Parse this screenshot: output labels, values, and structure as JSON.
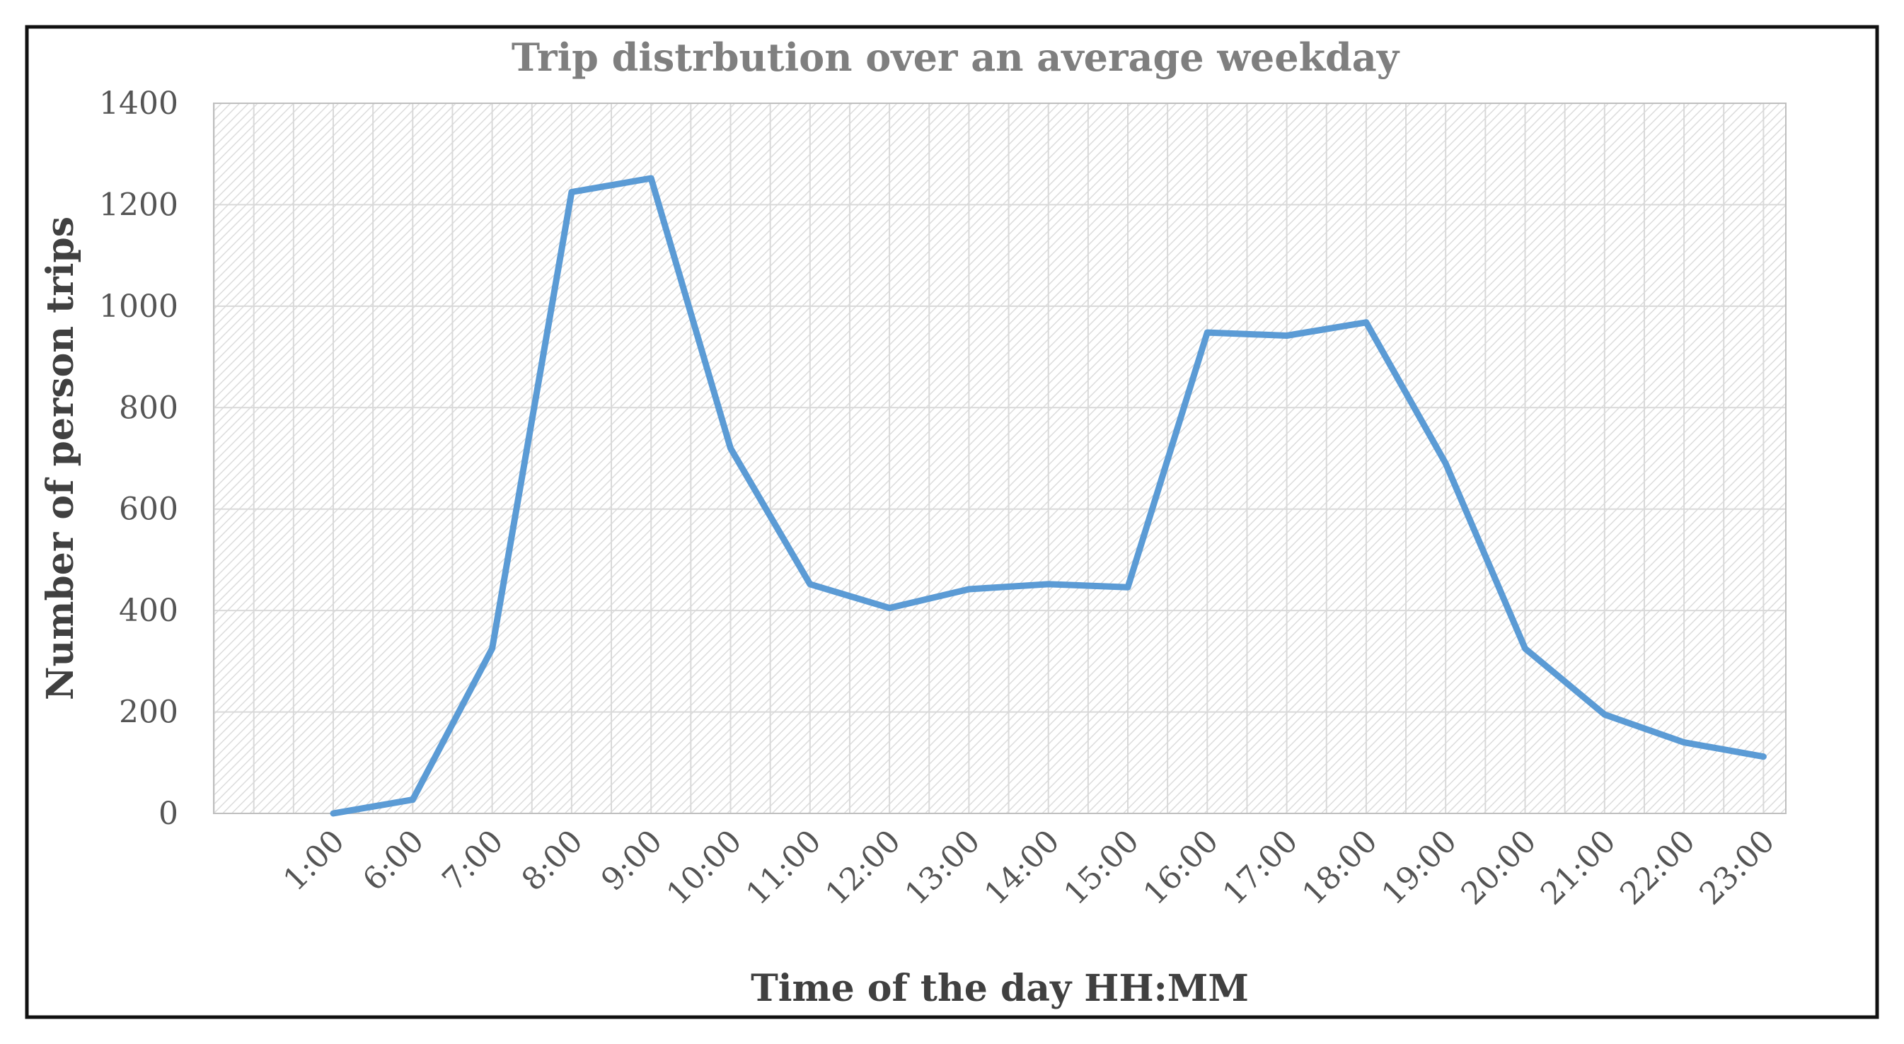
{
  "chart_data": {
    "type": "line",
    "title": "Trip distrbution over an average weekday",
    "xlabel": "Time of the day HH:MM",
    "ylabel": "Number of person trips",
    "categories": [
      "1:00",
      "6:00",
      "7:00",
      "8:00",
      "9:00",
      "10:00",
      "11:00",
      "12:00",
      "13:00",
      "14:00",
      "15:00",
      "16:00",
      "17:00",
      "18:00",
      "19:00",
      "20:00",
      "21:00",
      "22:00",
      "23:00"
    ],
    "series": [
      {
        "values": [
          0,
          27,
          325,
          1225,
          1252,
          720,
          452,
          405,
          442,
          452,
          446,
          948,
          942,
          968,
          690,
          325,
          195,
          140,
          112
        ]
      }
    ],
    "ylim": [
      0,
      1400
    ],
    "yticks": [
      0,
      200,
      400,
      600,
      800,
      1000,
      1200,
      1400
    ],
    "grid": true,
    "legend": "none",
    "line_color": "#5b9bd5"
  }
}
